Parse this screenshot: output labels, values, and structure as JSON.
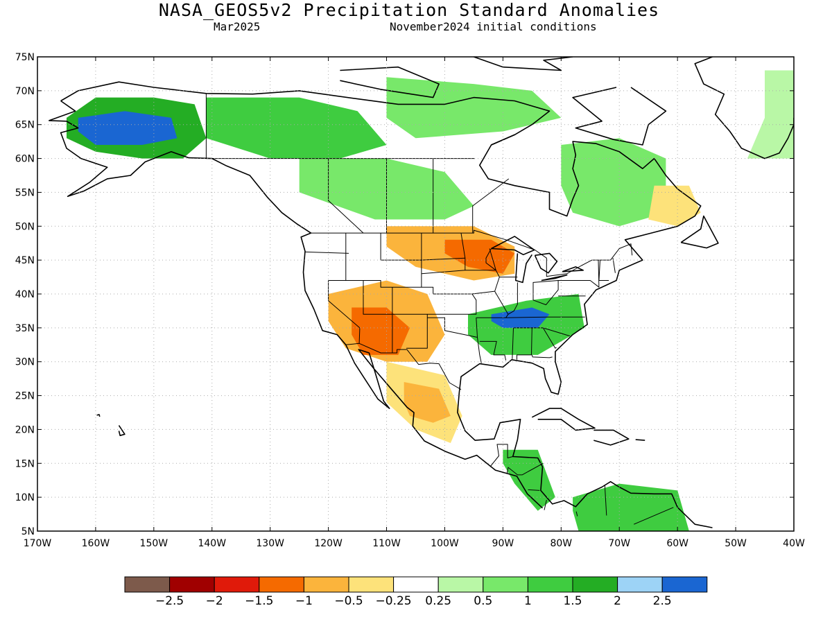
{
  "map": {
    "title": "NASA_GEOS5v2 Precipitation Standard Anomalies",
    "valid_month": "Mar2025",
    "initial_conditions": "November2024 initial conditions",
    "extent": {
      "lon_min": -170,
      "lon_max": -40,
      "lat_min": 5,
      "lat_max": 75
    },
    "lat_labels": [
      "5N",
      "10N",
      "15N",
      "20N",
      "25N",
      "30N",
      "35N",
      "40N",
      "45N",
      "50N",
      "55N",
      "60N",
      "65N",
      "70N",
      "75N"
    ],
    "lon_labels": [
      "170W",
      "160W",
      "150W",
      "140W",
      "130W",
      "120W",
      "110W",
      "100W",
      "90W",
      "80W",
      "70W",
      "60W",
      "50W",
      "40W"
    ]
  },
  "colorbar": {
    "labels": [
      "−2.5",
      "−2",
      "−1.5",
      "−1",
      "−0.5",
      "−0.25",
      "0.25",
      "0.5",
      "1",
      "1.5",
      "2",
      "2.5"
    ],
    "colors": [
      "#7d5a4b",
      "#a00000",
      "#e01a0a",
      "#f56a00",
      "#fbb43c",
      "#fde27a",
      "#ffffff",
      "#b9f7a6",
      "#78e86a",
      "#3fcc40",
      "#24ad24",
      "#9dd3f6",
      "#1a66d2"
    ]
  },
  "anomaly_regions": [
    {
      "name": "alaska-wet",
      "class": "2",
      "lon": [
        -165,
        -160,
        -150,
        -143,
        -141,
        -145,
        -152,
        -160,
        -165
      ],
      "lat": [
        66,
        69,
        69,
        68,
        63,
        60,
        60,
        61,
        63
      ]
    },
    {
      "name": "alaska-strong-wet",
      "class": "2.5",
      "lon": [
        -163,
        -155,
        -147,
        -146,
        -152,
        -160,
        -163
      ],
      "lat": [
        66,
        67,
        66,
        63,
        62,
        62,
        64
      ]
    },
    {
      "name": "yukon-wet",
      "class": "1.5",
      "lon": [
        -141,
        -125,
        -115,
        -110,
        -118,
        -130,
        -141
      ],
      "lat": [
        69,
        69,
        67,
        62,
        60,
        60,
        63
      ]
    },
    {
      "name": "canada-arctic-wet",
      "class": "1",
      "lon": [
        -110,
        -95,
        -85,
        -80,
        -90,
        -105,
        -110
      ],
      "lat": [
        72,
        71,
        70,
        66,
        64,
        63,
        66
      ]
    },
    {
      "name": "quebec-wet",
      "class": "1",
      "lon": [
        -80,
        -70,
        -62,
        -62,
        -70,
        -78,
        -80
      ],
      "lat": [
        62,
        63,
        60,
        52,
        50,
        52,
        56
      ]
    },
    {
      "name": "prairies-wet",
      "class": "1",
      "lon": [
        -125,
        -110,
        -100,
        -95,
        -100,
        -112,
        -125
      ],
      "lat": [
        60,
        60,
        58,
        53,
        51,
        51,
        55
      ]
    },
    {
      "name": "labrador-dry",
      "class": "-0.5",
      "lon": [
        -64,
        -58,
        -56,
        -60,
        -65,
        -64
      ],
      "lat": [
        56,
        56,
        52,
        50,
        51,
        56
      ]
    },
    {
      "name": "greenland-wet",
      "class": "0.5",
      "lon": [
        -45,
        -40,
        -40,
        -48,
        -45
      ],
      "lat": [
        73,
        73,
        60,
        60,
        66
      ]
    },
    {
      "name": "upper-midwest-dry",
      "class": "-1",
      "lon": [
        -110,
        -95,
        -88,
        -88,
        -95,
        -105,
        -110
      ],
      "lat": [
        50,
        50,
        47,
        43,
        42,
        44,
        47
      ]
    },
    {
      "name": "minnesota-strong-dry",
      "class": "-1.5",
      "lon": [
        -100,
        -92,
        -88,
        -90,
        -96,
        -100
      ],
      "lat": [
        48,
        48,
        46,
        43,
        44,
        46
      ]
    },
    {
      "name": "southwest-dry",
      "class": "-1",
      "lon": [
        -120,
        -110,
        -103,
        -100,
        -103,
        -110,
        -117,
        -120
      ],
      "lat": [
        40,
        42,
        40,
        34,
        30,
        30,
        32,
        36
      ]
    },
    {
      "name": "arizona-strong-dry",
      "class": "-1.5",
      "lon": [
        -116,
        -110,
        -106,
        -108,
        -114,
        -116
      ],
      "lat": [
        38,
        38,
        35,
        31,
        31,
        34
      ]
    },
    {
      "name": "mexico-dry",
      "class": "-0.5",
      "lon": [
        -110,
        -100,
        -97,
        -99,
        -105,
        -110
      ],
      "lat": [
        30,
        28,
        22,
        18,
        20,
        24
      ]
    },
    {
      "name": "mexico-core-dry",
      "class": "-1",
      "lon": [
        -107,
        -101,
        -99,
        -102,
        -106,
        -107
      ],
      "lat": [
        27,
        26,
        22,
        21,
        22,
        24
      ]
    },
    {
      "name": "southeast-wet",
      "class": "1.5",
      "lon": [
        -96,
        -86,
        -77,
        -76,
        -84,
        -92,
        -96
      ],
      "lat": [
        37,
        39,
        40,
        35,
        31,
        31,
        34
      ]
    },
    {
      "name": "tennessee-strong-wet",
      "class": "2.5",
      "lon": [
        -92,
        -85,
        -82,
        -84,
        -90,
        -92
      ],
      "lat": [
        37,
        38,
        37,
        35,
        35,
        36
      ]
    },
    {
      "name": "central-america-wet",
      "class": "1.5",
      "lon": [
        -90,
        -84,
        -81,
        -84,
        -88,
        -90
      ],
      "lat": [
        17,
        17,
        10,
        8,
        12,
        15
      ]
    },
    {
      "name": "venezuela-wet",
      "class": "1.5",
      "lon": [
        -78,
        -70,
        -60,
        -58,
        -65,
        -77,
        -78
      ],
      "lat": [
        10,
        12,
        11,
        5,
        5,
        5,
        8
      ]
    }
  ]
}
